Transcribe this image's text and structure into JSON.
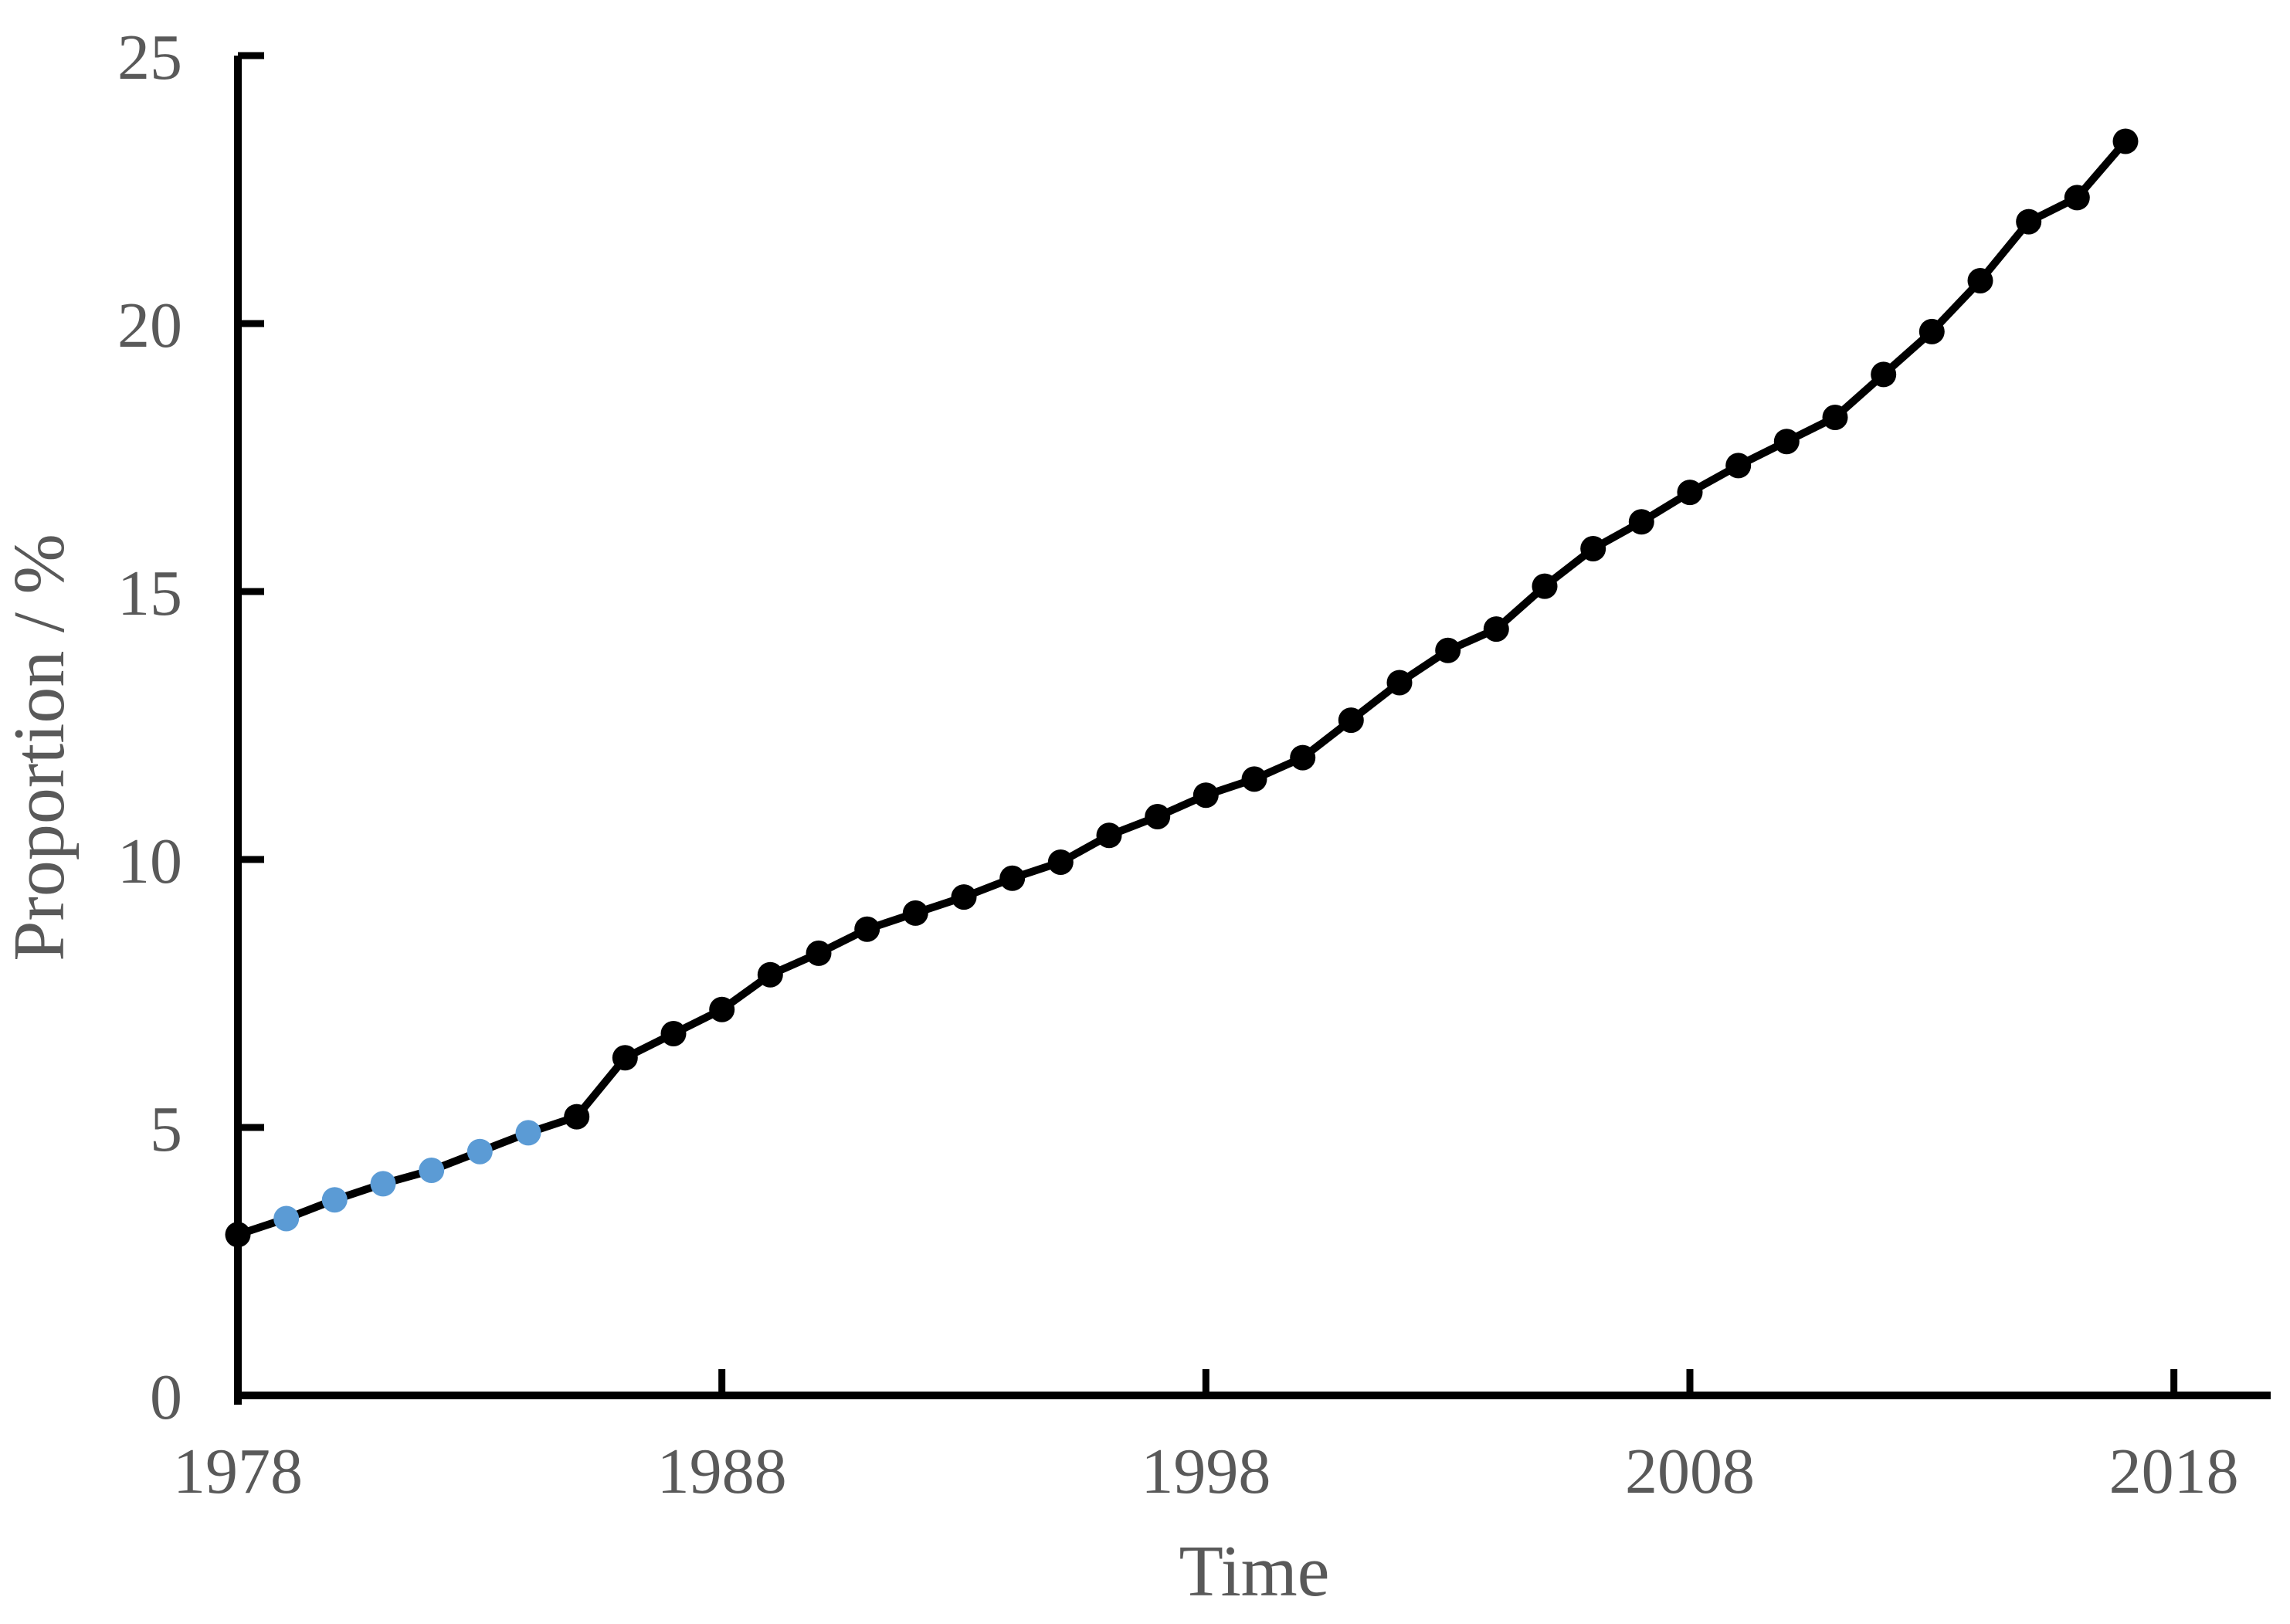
{
  "page": {
    "background_color": "#ffffff",
    "text_color": "#595959",
    "axis_color": "#000000"
  },
  "chart_data": {
    "type": "line",
    "title": "",
    "xlabel": "Time",
    "ylabel": "Proportion / %",
    "x": [
      1978,
      1979,
      1980,
      1981,
      1982,
      1983,
      1984,
      1985,
      1986,
      1987,
      1988,
      1989,
      1990,
      1991,
      1992,
      1993,
      1994,
      1995,
      1996,
      1997,
      1998,
      1999,
      2000,
      2001,
      2002,
      2003,
      2004,
      2005,
      2006,
      2007,
      2008,
      2009,
      2010,
      2011,
      2012,
      2013,
      2014,
      2015,
      2016,
      2017
    ],
    "series": [
      {
        "name": "Proportion",
        "values": [
          3.0,
          3.3,
          3.65,
          3.95,
          4.2,
          4.55,
          4.9,
          5.2,
          6.3,
          6.75,
          7.2,
          7.85,
          8.25,
          8.7,
          9.0,
          9.3,
          9.65,
          9.95,
          10.45,
          10.8,
          11.2,
          11.5,
          11.9,
          12.6,
          13.3,
          13.9,
          14.3,
          15.1,
          15.8,
          16.3,
          16.85,
          17.35,
          17.8,
          18.25,
          19.05,
          19.85,
          20.8,
          21.9,
          22.35,
          23.4
        ]
      }
    ],
    "line_color": "#000000",
    "marker_color": "#000000",
    "highlight_years": [
      1979,
      1980,
      1981,
      1982,
      1983,
      1984
    ],
    "highlight_color": "#5B9BD5",
    "x_ticks": [
      1978,
      1988,
      1998,
      2008,
      2018
    ],
    "y_ticks": [
      0,
      5,
      10,
      15,
      20,
      25
    ],
    "xlim": [
      1978,
      2020
    ],
    "ylim": [
      0,
      25
    ],
    "grid": false,
    "legend_position": "none"
  }
}
